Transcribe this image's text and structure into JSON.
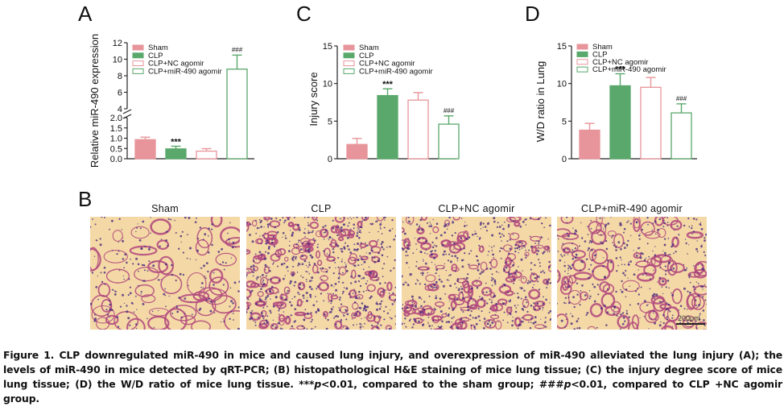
{
  "colors": {
    "sham_fill": "#e7959b",
    "sham_edge": "#e7959b",
    "clp_fill": "#5aa86b",
    "clp_edge": "#5aa86b",
    "nc_fill": "#ffffff",
    "nc_edge": "#e7959b",
    "mir_fill": "#ffffff",
    "mir_edge": "#5aa86b",
    "tissue_bg": "#f4d9a6",
    "tissue_wall": "#b0457d",
    "nuclei": "#4b2a80"
  },
  "legend_labels": [
    "Sham",
    "CLP",
    "CLP+NC agomir",
    "CLP+miR-490 agomir"
  ],
  "chart_data": [
    {
      "panel": "A",
      "type": "bar",
      "ylabel": "Relative miR-490 expression",
      "broken_axis": true,
      "lower_range": [
        0,
        2.0
      ],
      "lower_ticks": [
        "0.0",
        "0.5",
        "1.0",
        "1.5",
        "2.0"
      ],
      "upper_range": [
        4,
        12
      ],
      "upper_ticks": [
        "4",
        "6",
        "8",
        "10",
        "12"
      ],
      "categories": [
        "Sham",
        "CLP",
        "CLP+NC agomir",
        "CLP+miR-490 agomir"
      ],
      "values": [
        0.93,
        0.48,
        0.37,
        8.8
      ],
      "errors": [
        0.12,
        0.13,
        0.12,
        1.7
      ],
      "annotations": [
        "",
        "***",
        "",
        "###"
      ],
      "legend": "top-left"
    },
    {
      "panel": "C",
      "type": "bar",
      "ylabel": "Injury score",
      "ylim": [
        0,
        15
      ],
      "ticks": [
        "0",
        "5",
        "10",
        "15"
      ],
      "categories": [
        "Sham",
        "CLP",
        "CLP+NC agomir",
        "CLP+miR-490 agomir"
      ],
      "values": [
        1.9,
        8.4,
        7.8,
        4.6
      ],
      "errors": [
        0.8,
        0.9,
        1.0,
        1.1
      ],
      "annotations": [
        "",
        "***",
        "",
        "###"
      ],
      "legend": "top-right"
    },
    {
      "panel": "D",
      "type": "bar",
      "ylabel": "W/D ratio in Lung",
      "ylim": [
        0,
        15
      ],
      "ticks": [
        "0",
        "5",
        "10",
        "15"
      ],
      "categories": [
        "Sham",
        "CLP",
        "CLP+NC agomir",
        "CLP+miR-490 agomir"
      ],
      "values": [
        3.8,
        9.7,
        9.5,
        6.1
      ],
      "errors": [
        0.9,
        1.6,
        1.3,
        1.2
      ],
      "annotations": [
        "",
        "***",
        "",
        "###"
      ],
      "legend": "top-left"
    }
  ],
  "panel_b": {
    "letter": "B",
    "titles": [
      "Sham",
      "CLP",
      "CLP+NC agomir",
      "CLP+miR-490 agomir"
    ],
    "scale_bar": "200μm"
  },
  "panel_letters": {
    "a": "A",
    "c": "C",
    "d": "D"
  },
  "caption": {
    "fig_label": "Figure 1.",
    "main": " CLP downregulated miR-490 in mice and caused lung injury, and overexpression of miR-490 alleviated the lung injury (A); the levels of miR-490 in mice detected by qRT-PCR; (B) histopathological H&E staining of mice lung tissue; (C) the injury degree score of mice lung tissue; (D) the W/D ratio of mice lung tissue. ***",
    "p1": "p",
    "mid": "<0.01, compared to the sham group; ###",
    "p2": "p",
    "end": "<0.01, compared to CLP +NC agomir group."
  }
}
